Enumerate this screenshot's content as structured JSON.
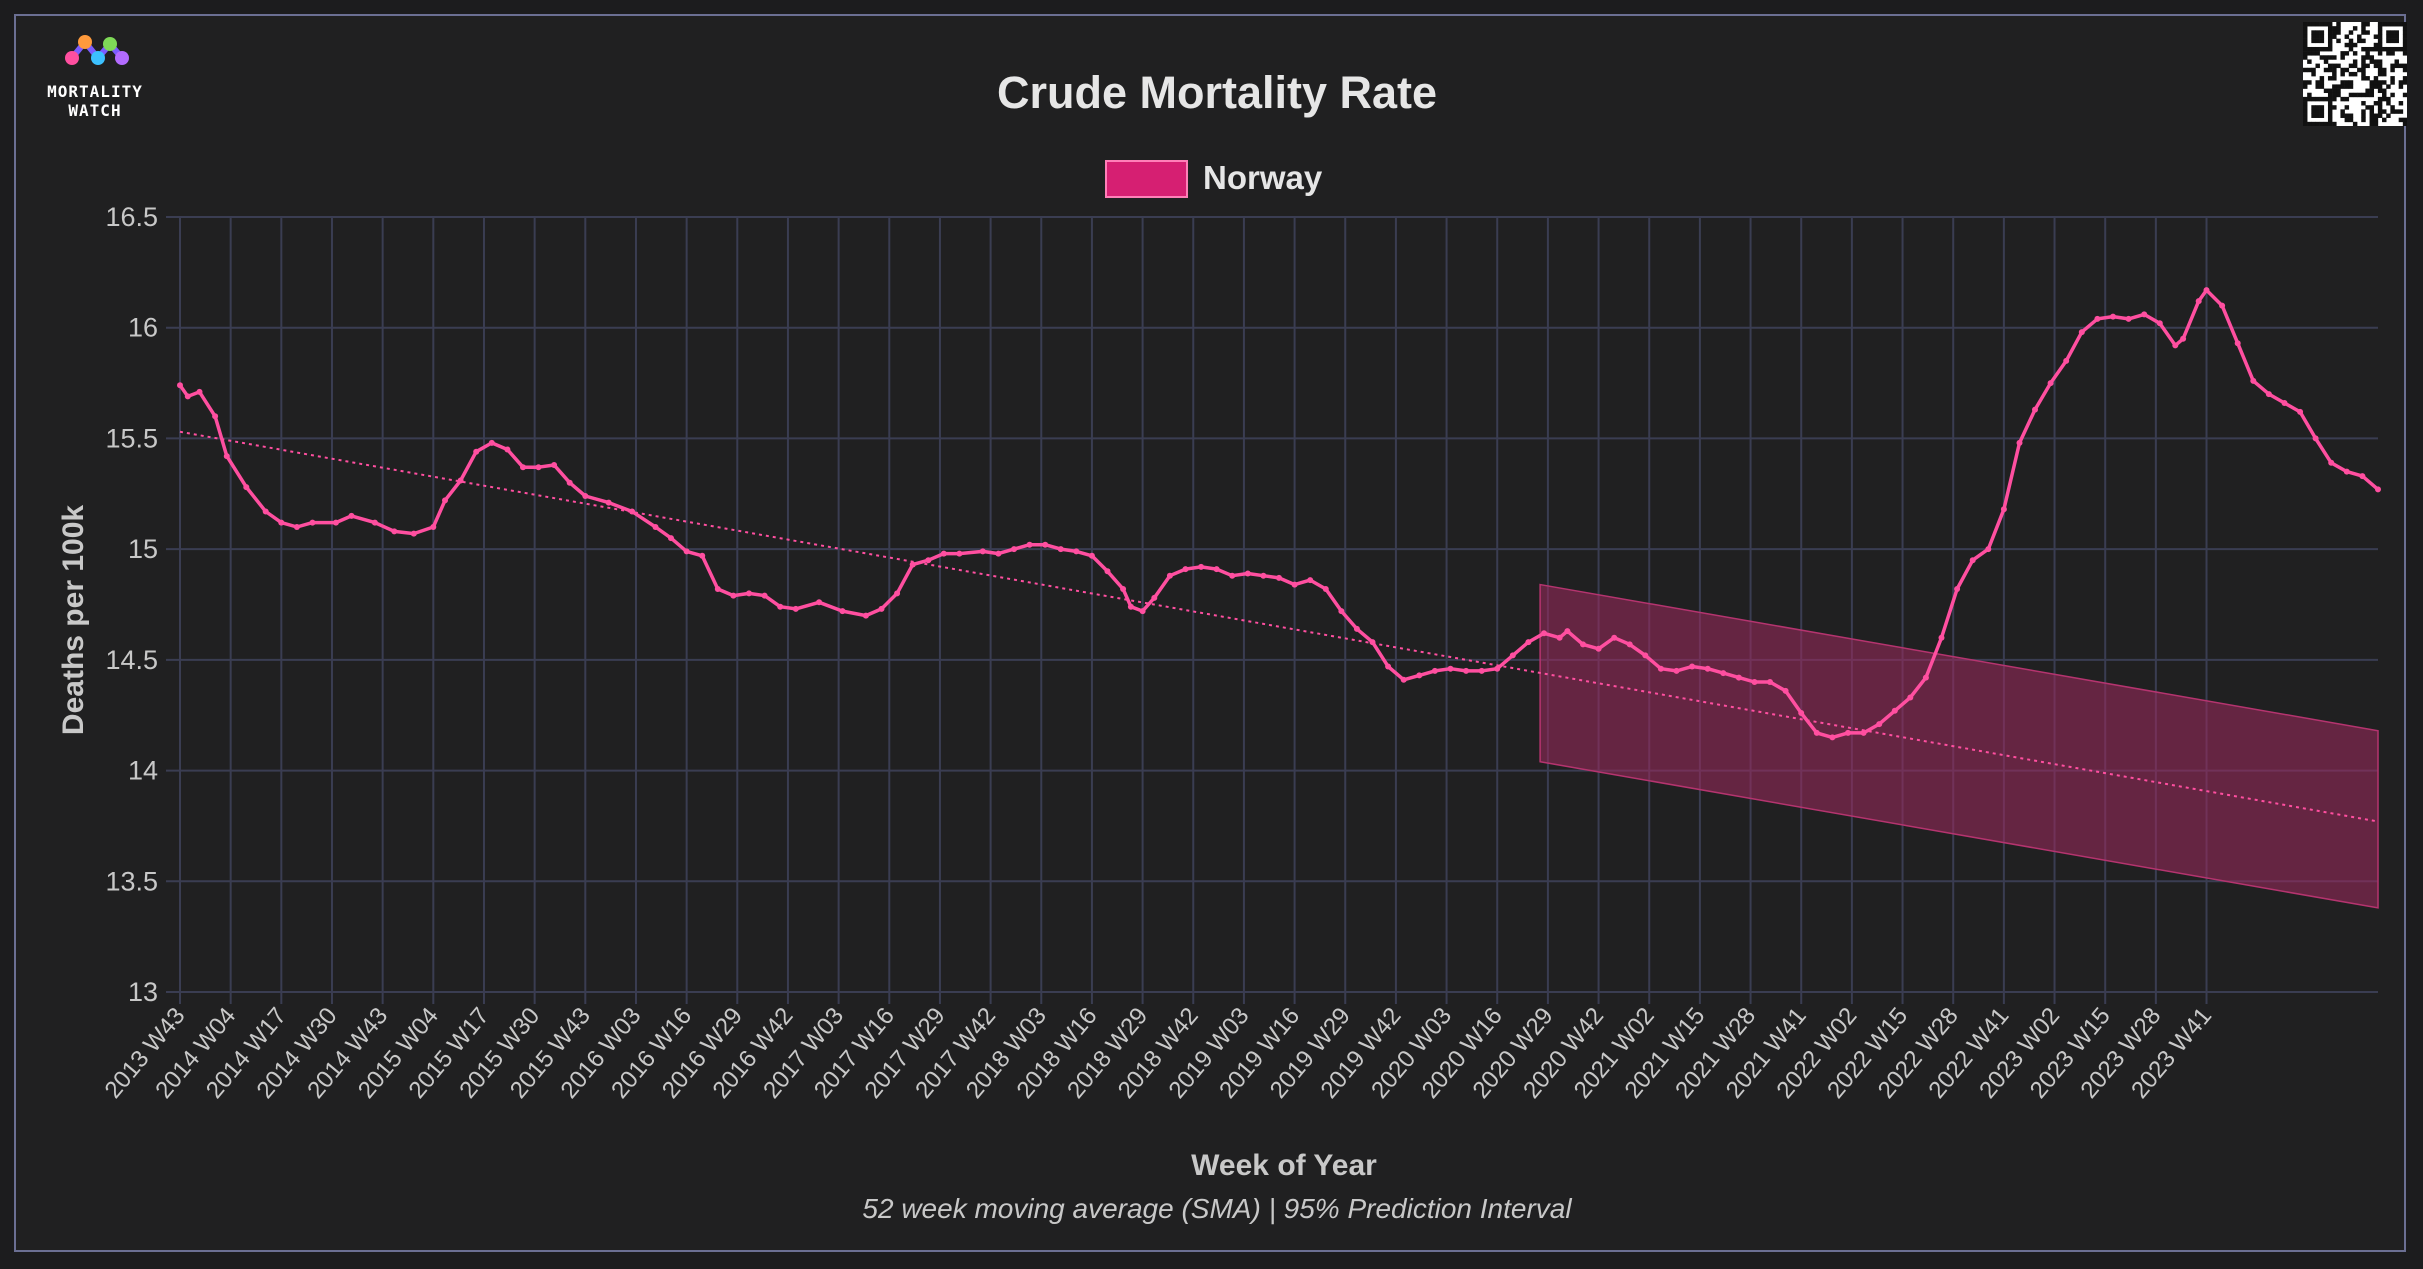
{
  "brand": {
    "line1": "MORTALITY",
    "line2": "WATCH"
  },
  "colors": {
    "series": "#ff4fa0",
    "legend": "#d61f72",
    "band": "#9e2a5f",
    "grid": "#3a3d52",
    "text": "#e6e6e6"
  },
  "chart_data": {
    "type": "line",
    "title": "Crude Mortality Rate",
    "xlabel": "Week of Year",
    "ylabel": "Deaths per 100k",
    "subtitle": "52 week moving average (SMA) | 95% Prediction Interval",
    "legend": [
      "Norway"
    ],
    "ylim": [
      13,
      16.5
    ],
    "yticks": [
      13,
      13.5,
      14,
      14.5,
      15,
      15.5,
      16,
      16.5
    ],
    "ytick_labels": [
      "13",
      "13.5",
      "14",
      "14.5",
      "15",
      "15.5",
      "16",
      "16.5"
    ],
    "xticks": [
      "2013 W43",
      "2014 W04",
      "2014 W17",
      "2014 W30",
      "2014 W43",
      "2015 W04",
      "2015 W17",
      "2015 W30",
      "2015 W43",
      "2016 W03",
      "2016 W16",
      "2016 W29",
      "2016 W42",
      "2017 W03",
      "2017 W16",
      "2017 W29",
      "2017 W42",
      "2018 W03",
      "2018 W16",
      "2018 W29",
      "2018 W42",
      "2019 W03",
      "2019 W16",
      "2019 W29",
      "2019 W42",
      "2020 W03",
      "2020 W16",
      "2020 W29",
      "2020 W42",
      "2021 W02",
      "2021 W15",
      "2021 W28",
      "2021 W41",
      "2022 W02",
      "2022 W15",
      "2022 W28",
      "2022 W41",
      "2023 W02",
      "2023 W15",
      "2023 W28",
      "2023 W41"
    ],
    "x_tick_index_step": 13,
    "series": [
      {
        "name": "Norway",
        "points": [
          [
            0,
            15.74
          ],
          [
            2,
            15.69
          ],
          [
            5,
            15.71
          ],
          [
            9,
            15.6
          ],
          [
            12,
            15.42
          ],
          [
            17,
            15.28
          ],
          [
            22,
            15.17
          ],
          [
            26,
            15.12
          ],
          [
            30,
            15.1
          ],
          [
            34,
            15.12
          ],
          [
            40,
            15.12
          ],
          [
            44,
            15.15
          ],
          [
            50,
            15.12
          ],
          [
            55,
            15.08
          ],
          [
            60,
            15.07
          ],
          [
            65,
            15.1
          ],
          [
            68,
            15.22
          ],
          [
            72,
            15.31
          ],
          [
            76,
            15.44
          ],
          [
            80,
            15.48
          ],
          [
            84,
            15.45
          ],
          [
            88,
            15.37
          ],
          [
            92,
            15.37
          ],
          [
            96,
            15.38
          ],
          [
            100,
            15.3
          ],
          [
            104,
            15.24
          ],
          [
            110,
            15.21
          ],
          [
            116,
            15.17
          ],
          [
            122,
            15.1
          ],
          [
            126,
            15.05
          ],
          [
            130,
            14.99
          ],
          [
            134,
            14.97
          ],
          [
            138,
            14.82
          ],
          [
            142,
            14.79
          ],
          [
            146,
            14.8
          ],
          [
            150,
            14.79
          ],
          [
            154,
            14.74
          ],
          [
            158,
            14.73
          ],
          [
            164,
            14.76
          ],
          [
            170,
            14.72
          ],
          [
            176,
            14.7
          ],
          [
            180,
            14.73
          ],
          [
            184,
            14.8
          ],
          [
            188,
            14.93
          ],
          [
            192,
            14.95
          ],
          [
            196,
            14.98
          ],
          [
            200,
            14.98
          ],
          [
            206,
            14.99
          ],
          [
            210,
            14.98
          ],
          [
            214,
            15.0
          ],
          [
            218,
            15.02
          ],
          [
            222,
            15.02
          ],
          [
            226,
            15.0
          ],
          [
            230,
            14.99
          ],
          [
            234,
            14.97
          ],
          [
            238,
            14.9
          ],
          [
            242,
            14.82
          ],
          [
            244,
            14.74
          ],
          [
            247,
            14.72
          ],
          [
            250,
            14.78
          ],
          [
            254,
            14.88
          ],
          [
            258,
            14.91
          ],
          [
            262,
            14.92
          ],
          [
            266,
            14.91
          ],
          [
            270,
            14.88
          ],
          [
            274,
            14.89
          ],
          [
            278,
            14.88
          ],
          [
            282,
            14.87
          ],
          [
            286,
            14.84
          ],
          [
            290,
            14.86
          ],
          [
            294,
            14.82
          ],
          [
            298,
            14.72
          ],
          [
            302,
            14.64
          ],
          [
            306,
            14.58
          ],
          [
            310,
            14.47
          ],
          [
            314,
            14.41
          ],
          [
            318,
            14.43
          ],
          [
            322,
            14.45
          ],
          [
            326,
            14.46
          ],
          [
            330,
            14.45
          ],
          [
            334,
            14.45
          ],
          [
            338,
            14.46
          ],
          [
            342,
            14.52
          ],
          [
            346,
            14.58
          ],
          [
            350,
            14.62
          ],
          [
            354,
            14.6
          ],
          [
            356,
            14.63
          ],
          [
            360,
            14.57
          ],
          [
            364,
            14.55
          ],
          [
            368,
            14.6
          ],
          [
            372,
            14.57
          ],
          [
            376,
            14.52
          ],
          [
            380,
            14.46
          ],
          [
            384,
            14.45
          ],
          [
            388,
            14.47
          ],
          [
            392,
            14.46
          ],
          [
            396,
            14.44
          ],
          [
            400,
            14.42
          ],
          [
            404,
            14.4
          ],
          [
            408,
            14.4
          ],
          [
            412,
            14.36
          ],
          [
            416,
            14.26
          ],
          [
            420,
            14.17
          ],
          [
            424,
            14.15
          ],
          [
            428,
            14.17
          ],
          [
            432,
            14.17
          ],
          [
            436,
            14.21
          ],
          [
            440,
            14.27
          ],
          [
            444,
            14.33
          ],
          [
            448,
            14.42
          ],
          [
            452,
            14.6
          ],
          [
            456,
            14.82
          ],
          [
            460,
            14.95
          ],
          [
            464,
            15.0
          ],
          [
            468,
            15.18
          ],
          [
            472,
            15.48
          ],
          [
            476,
            15.63
          ],
          [
            480,
            15.75
          ],
          [
            484,
            15.85
          ],
          [
            488,
            15.98
          ],
          [
            492,
            16.04
          ],
          [
            496,
            16.05
          ],
          [
            500,
            16.04
          ],
          [
            504,
            16.06
          ],
          [
            508,
            16.02
          ],
          [
            512,
            15.92
          ],
          [
            514,
            15.95
          ],
          [
            518,
            16.12
          ],
          [
            520,
            16.17
          ],
          [
            524,
            16.1
          ],
          [
            528,
            15.93
          ],
          [
            532,
            15.76
          ],
          [
            536,
            15.7
          ],
          [
            540,
            15.66
          ],
          [
            544,
            15.62
          ],
          [
            548,
            15.5
          ],
          [
            552,
            15.39
          ],
          [
            556,
            15.35
          ],
          [
            560,
            15.33
          ],
          [
            564,
            15.27
          ]
        ]
      }
    ],
    "trend_line": [
      [
        0,
        15.53
      ],
      [
        564,
        13.77
      ]
    ],
    "prediction_interval": {
      "x": [
        349,
        564
      ],
      "upper": [
        14.84,
        14.18
      ],
      "lower": [
        14.04,
        13.38
      ]
    },
    "grid": true,
    "legend_position": "top-center"
  }
}
